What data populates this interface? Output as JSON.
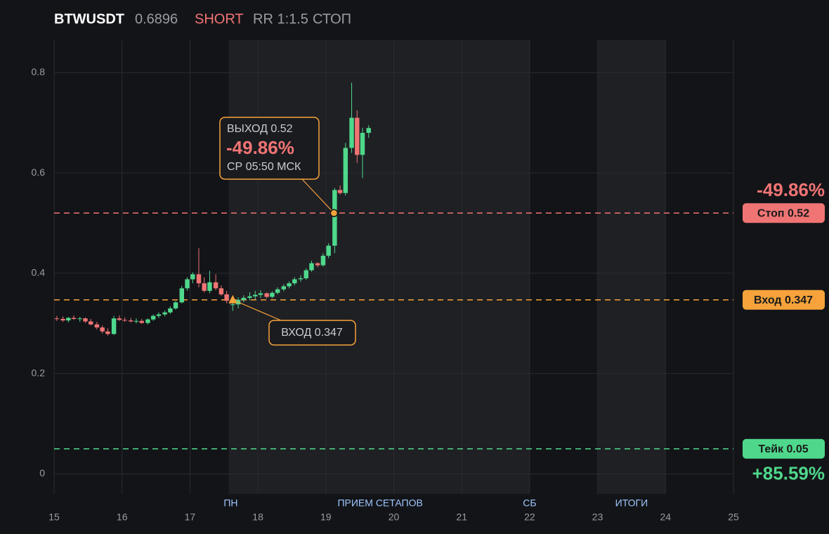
{
  "header": {
    "symbol": "BTWUSDT",
    "price": "0.6896",
    "side": "SHORT",
    "rr": "RR 1:1.5",
    "status": "СТОП"
  },
  "chart_data": {
    "type": "candlestick",
    "xlim": [
      15,
      25
    ],
    "xticks": [
      15,
      16,
      17,
      18,
      19,
      20,
      21,
      22,
      23,
      24,
      25
    ],
    "ylim": [
      -0.04,
      0.865
    ],
    "yticks": [
      0,
      0.2,
      0.4,
      0.6,
      0.8
    ],
    "grid": true,
    "up_color": "#4fd88c",
    "down_color": "#f07474",
    "shaded": [
      [
        17.57,
        22
      ],
      [
        23,
        24
      ]
    ],
    "markers": [
      {
        "label": "ПН",
        "x": 17.6
      },
      {
        "label": "ПРИЕМ СЕТАПОВ",
        "x": 19.8
      },
      {
        "label": "СБ",
        "x": 22
      },
      {
        "label": "ИТОГИ",
        "x": 23.5
      }
    ],
    "x": [
      15.04,
      15.13,
      15.21,
      15.29,
      15.38,
      15.46,
      15.54,
      15.63,
      15.71,
      15.79,
      15.88,
      15.96,
      16.04,
      16.13,
      16.21,
      16.29,
      16.38,
      16.46,
      16.54,
      16.63,
      16.71,
      16.79,
      16.88,
      16.96,
      17.04,
      17.13,
      17.21,
      17.29,
      17.38,
      17.46,
      17.54,
      17.63,
      17.71,
      17.79,
      17.88,
      17.96,
      18.04,
      18.13,
      18.21,
      18.29,
      18.38,
      18.46,
      18.54,
      18.63,
      18.71,
      18.79,
      18.88,
      18.96,
      19.04,
      19.13,
      19.21,
      19.29,
      19.38,
      19.46,
      19.54,
      19.63
    ],
    "open": [
      0.31,
      0.309,
      0.306,
      0.311,
      0.309,
      0.31,
      0.304,
      0.298,
      0.292,
      0.284,
      0.279,
      0.31,
      0.307,
      0.306,
      0.304,
      0.305,
      0.301,
      0.308,
      0.315,
      0.318,
      0.322,
      0.33,
      0.342,
      0.37,
      0.388,
      0.398,
      0.38,
      0.365,
      0.382,
      0.37,
      0.358,
      0.338,
      0.338,
      0.347,
      0.351,
      0.354,
      0.357,
      0.36,
      0.353,
      0.361,
      0.368,
      0.374,
      0.38,
      0.388,
      0.39,
      0.406,
      0.42,
      0.416,
      0.435,
      0.455,
      0.566,
      0.56,
      0.65,
      0.71,
      0.636,
      0.68
    ],
    "high": [
      0.315,
      0.314,
      0.313,
      0.316,
      0.313,
      0.312,
      0.309,
      0.303,
      0.296,
      0.29,
      0.315,
      0.316,
      0.312,
      0.311,
      0.31,
      0.309,
      0.31,
      0.318,
      0.322,
      0.326,
      0.334,
      0.345,
      0.375,
      0.392,
      0.402,
      0.45,
      0.392,
      0.405,
      0.398,
      0.376,
      0.365,
      0.352,
      0.352,
      0.356,
      0.362,
      0.365,
      0.366,
      0.362,
      0.364,
      0.372,
      0.378,
      0.384,
      0.392,
      0.396,
      0.41,
      0.425,
      0.422,
      0.44,
      0.46,
      0.57,
      0.575,
      0.66,
      0.78,
      0.725,
      0.69,
      0.695
    ],
    "low": [
      0.305,
      0.303,
      0.302,
      0.307,
      0.303,
      0.301,
      0.296,
      0.288,
      0.28,
      0.276,
      0.277,
      0.305,
      0.303,
      0.302,
      0.3,
      0.299,
      0.298,
      0.305,
      0.311,
      0.314,
      0.319,
      0.327,
      0.34,
      0.365,
      0.38,
      0.372,
      0.362,
      0.36,
      0.366,
      0.355,
      0.34,
      0.325,
      0.33,
      0.342,
      0.346,
      0.348,
      0.351,
      0.35,
      0.35,
      0.358,
      0.364,
      0.37,
      0.376,
      0.383,
      0.387,
      0.403,
      0.412,
      0.413,
      0.43,
      0.44,
      0.557,
      0.555,
      0.64,
      0.62,
      0.59,
      0.67
    ],
    "close": [
      0.309,
      0.306,
      0.311,
      0.309,
      0.31,
      0.304,
      0.298,
      0.292,
      0.284,
      0.279,
      0.31,
      0.307,
      0.306,
      0.304,
      0.305,
      0.301,
      0.308,
      0.315,
      0.318,
      0.322,
      0.33,
      0.342,
      0.37,
      0.388,
      0.398,
      0.38,
      0.365,
      0.382,
      0.37,
      0.358,
      0.345,
      0.338,
      0.347,
      0.351,
      0.354,
      0.357,
      0.36,
      0.353,
      0.361,
      0.368,
      0.374,
      0.38,
      0.388,
      0.39,
      0.406,
      0.42,
      0.416,
      0.435,
      0.455,
      0.566,
      0.56,
      0.65,
      0.71,
      0.636,
      0.68,
      0.6896
    ],
    "levels": [
      {
        "label": "Стоп 0.52",
        "value": 0.52,
        "color": "#f07474",
        "pct": "-49.86%"
      },
      {
        "label": "Вход 0.347",
        "value": 0.347,
        "color": "#f7a23b"
      },
      {
        "label": "Тейк 0.05",
        "value": 0.05,
        "color": "#4fd88c",
        "pct": "+85.59%"
      }
    ],
    "exit": {
      "label": "ВЫХОД 0.52",
      "pnl": "-49.86%",
      "time": "СР 05:50 МСК",
      "x": 19.12,
      "y": 0.52
    },
    "entry": {
      "label": "ВХОД 0.347",
      "x": 17.63,
      "y": 0.347
    }
  }
}
